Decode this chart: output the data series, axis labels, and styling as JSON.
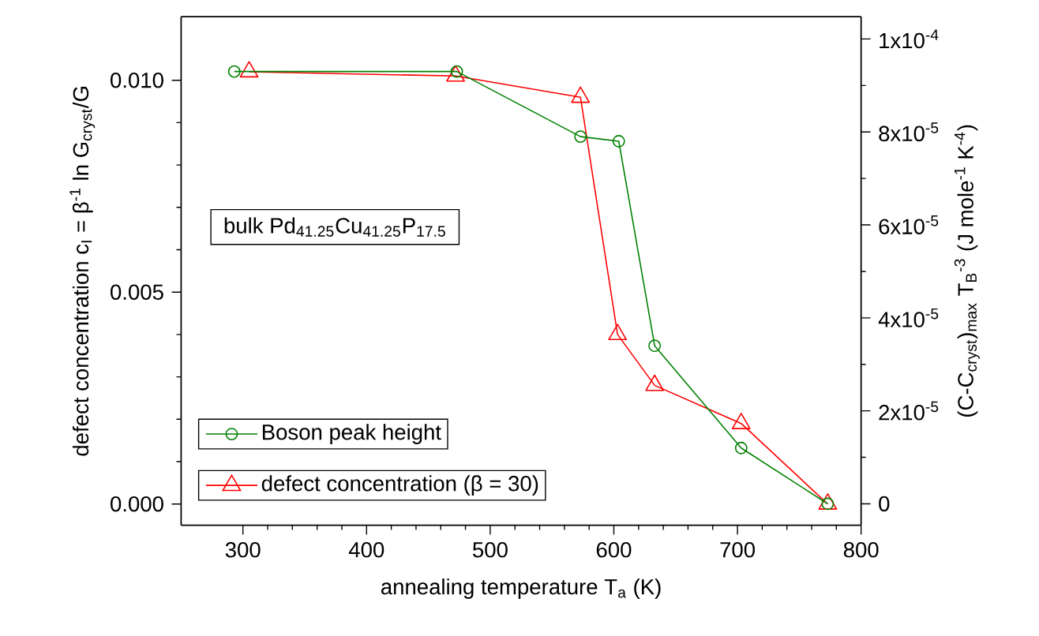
{
  "chart_data": {
    "type": "line",
    "xlabel": "annealing temperature T$_{a}$ (K)",
    "ylabel": "defect concentration c$_{I}$ = β$^{-1}$ ln G$_{cryst}$/G",
    "y2label": "(C-C$_{cryst}$)$_{max}$ T$_{B}$$^{-3}$  (J mole$^{-1}$ K$^{-4}$)",
    "annotations": [
      "bulk Pd$_{41.25}$Cu$_{41.25}$P$_{17.5}$"
    ],
    "xlim": [
      250,
      800
    ],
    "xticks": [
      300,
      400,
      500,
      600,
      700,
      800
    ],
    "ylim": [
      -0.0005,
      0.0115
    ],
    "yticks": [
      {
        "value": 0,
        "label": "0.000"
      },
      {
        "value": 0.005,
        "label": "0.005"
      },
      {
        "value": 0.01,
        "label": "0.010"
      }
    ],
    "y2lim": [
      -4.6e-06,
      0.0001048
    ],
    "y2ticks": [
      0,
      {
        "value": 2e-05,
        "label": "2x10$^{-5}$"
      },
      {
        "value": 4e-05,
        "label": "4x10$^{-5}$"
      },
      {
        "value": 6e-05,
        "label": "6x10$^{-5}$"
      },
      {
        "value": 8e-05,
        "label": "8x10$^{-5}$"
      },
      {
        "value": 0.0001,
        "label": "1x10$^{-4}$"
      }
    ],
    "legend": "bottom left",
    "line_style": "solid",
    "series": [
      {
        "name": "Boson peak height",
        "color": "#008000",
        "axis": "y2",
        "marker": "circle",
        "x": [
          293,
          473,
          573,
          604,
          633,
          703,
          773
        ],
        "values": [
          9.3e-05,
          9.3e-05,
          7.9e-05,
          7.8e-05,
          3.4e-05,
          1.2e-05,
          0
        ]
      },
      {
        "name": "defect concentration (β = 30)",
        "color": "#ff0000",
        "axis": "y",
        "marker": "triangle",
        "x": [
          305,
          472,
          573,
          603,
          633,
          703,
          773
        ],
        "values": [
          0.0102,
          0.0101,
          0.0096,
          0.004,
          0.0028,
          0.0019,
          0.0
        ]
      }
    ]
  }
}
